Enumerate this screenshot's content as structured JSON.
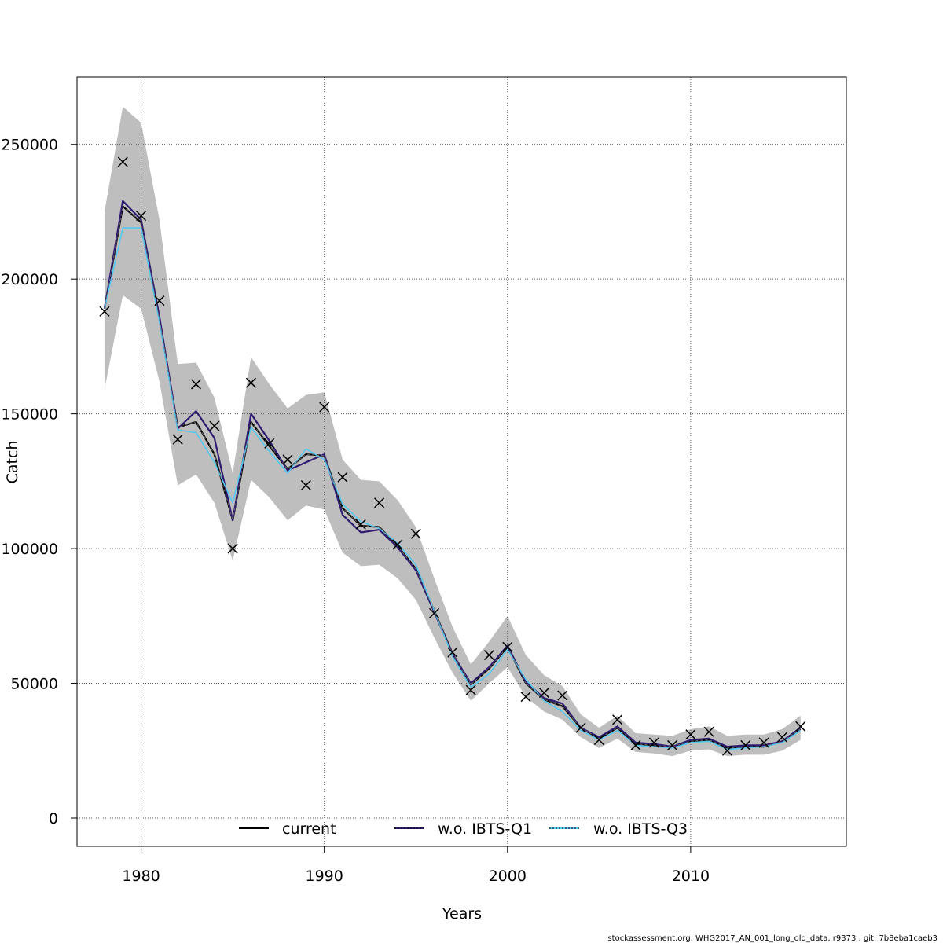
{
  "chart_data": {
    "type": "line",
    "xlabel": "Years",
    "ylabel": "Catch",
    "xlim": [
      1976.5,
      2018.5
    ],
    "ylim": [
      -10500,
      275000
    ],
    "x_ticks": [
      1980,
      1990,
      2000,
      2010
    ],
    "x_tick_labels": [
      "1980",
      "1990",
      "2000",
      "2010"
    ],
    "y_ticks": [
      0,
      50000,
      100000,
      150000,
      200000,
      250000
    ],
    "y_tick_labels": [
      "0",
      "50000",
      "100000",
      "150000",
      "200000",
      "250000"
    ],
    "grid": true,
    "legend_position": "bottom",
    "colors": {
      "band": "#bebebe",
      "current": "#000000",
      "q1": "#2e1a6e",
      "q3": "#55c8f0",
      "observed": "#000000",
      "grid": "#555555"
    },
    "years": [
      1978,
      1979,
      1980,
      1981,
      1982,
      1983,
      1984,
      1985,
      1986,
      1987,
      1988,
      1989,
      1990,
      1991,
      1992,
      1993,
      1994,
      1995,
      1996,
      1997,
      1998,
      1999,
      2000,
      2001,
      2002,
      2003,
      2004,
      2005,
      2006,
      2007,
      2008,
      2009,
      2010,
      2011,
      2012,
      2013,
      2014,
      2015,
      2016
    ],
    "band_upper": [
      225000,
      264000,
      258000,
      222000,
      168500,
      169000,
      156000,
      128000,
      171000,
      161000,
      152000,
      157000,
      158000,
      133000,
      125500,
      125000,
      118000,
      108000,
      89000,
      71000,
      57000,
      65500,
      75000,
      60500,
      53000,
      49000,
      38500,
      33500,
      38000,
      31500,
      31000,
      30500,
      33000,
      34000,
      30500,
      31000,
      31000,
      33000,
      38000
    ],
    "band_lower": [
      159000,
      194000,
      189000,
      162000,
      123500,
      127500,
      117000,
      95500,
      125500,
      119000,
      110500,
      116000,
      114500,
      98500,
      93500,
      94000,
      89000,
      81000,
      67000,
      54000,
      43500,
      50000,
      56000,
      45000,
      39500,
      36500,
      30000,
      26000,
      29500,
      24500,
      24000,
      23000,
      25000,
      25500,
      23000,
      23500,
      23500,
      25000,
      29000
    ],
    "series": [
      {
        "name": "current",
        "values": [
          189000,
          227000,
          221000,
          185000,
          145000,
          147000,
          135000,
          110500,
          147000,
          138000,
          129500,
          135000,
          134500,
          115000,
          108500,
          108000,
          101000,
          92500,
          77000,
          61000,
          49500,
          55500,
          63500,
          50000,
          44000,
          41500,
          33500,
          29500,
          33500,
          27500,
          27000,
          26500,
          28500,
          29000,
          26000,
          26500,
          26500,
          28500,
          33000
        ]
      },
      {
        "name": "w.o. IBTS-Q1",
        "values": [
          189000,
          229000,
          222000,
          186000,
          144500,
          151000,
          141000,
          110500,
          150000,
          140000,
          129000,
          132000,
          135000,
          112500,
          106000,
          107000,
          100500,
          92000,
          76500,
          61000,
          50000,
          56000,
          64000,
          50500,
          44500,
          42500,
          33500,
          30000,
          34000,
          28000,
          27500,
          26500,
          29000,
          29500,
          26500,
          27000,
          27000,
          28500,
          33500
        ]
      },
      {
        "name": "w.o. IBTS-Q3",
        "values": [
          189000,
          219000,
          219000,
          184000,
          144000,
          143000,
          132000,
          117000,
          145000,
          136000,
          128000,
          137000,
          133000,
          116500,
          110000,
          107500,
          102000,
          94000,
          77000,
          60000,
          48500,
          53500,
          62500,
          51500,
          43500,
          39500,
          32500,
          29000,
          32500,
          27000,
          26500,
          26000,
          28000,
          28500,
          25500,
          26000,
          26500,
          28000,
          32500
        ]
      }
    ],
    "observed": {
      "marker": "x",
      "values": [
        188000,
        243500,
        223500,
        192000,
        140500,
        161000,
        145500,
        100000,
        161500,
        139000,
        133000,
        123500,
        152500,
        126500,
        109000,
        117000,
        101500,
        105500,
        76000,
        61500,
        47500,
        60500,
        63500,
        45000,
        46500,
        45500,
        33500,
        29000,
        36500,
        27000,
        28000,
        27000,
        31000,
        32000,
        25000,
        27000,
        28000,
        30000,
        34000
      ]
    },
    "legend": [
      "current",
      "w.o. IBTS-Q1",
      "w.o. IBTS-Q3"
    ]
  },
  "footer": "stockassessment.org, WHG2017_AN_001_long_old_data, r9373 , git: 7b8eba1caeb3"
}
